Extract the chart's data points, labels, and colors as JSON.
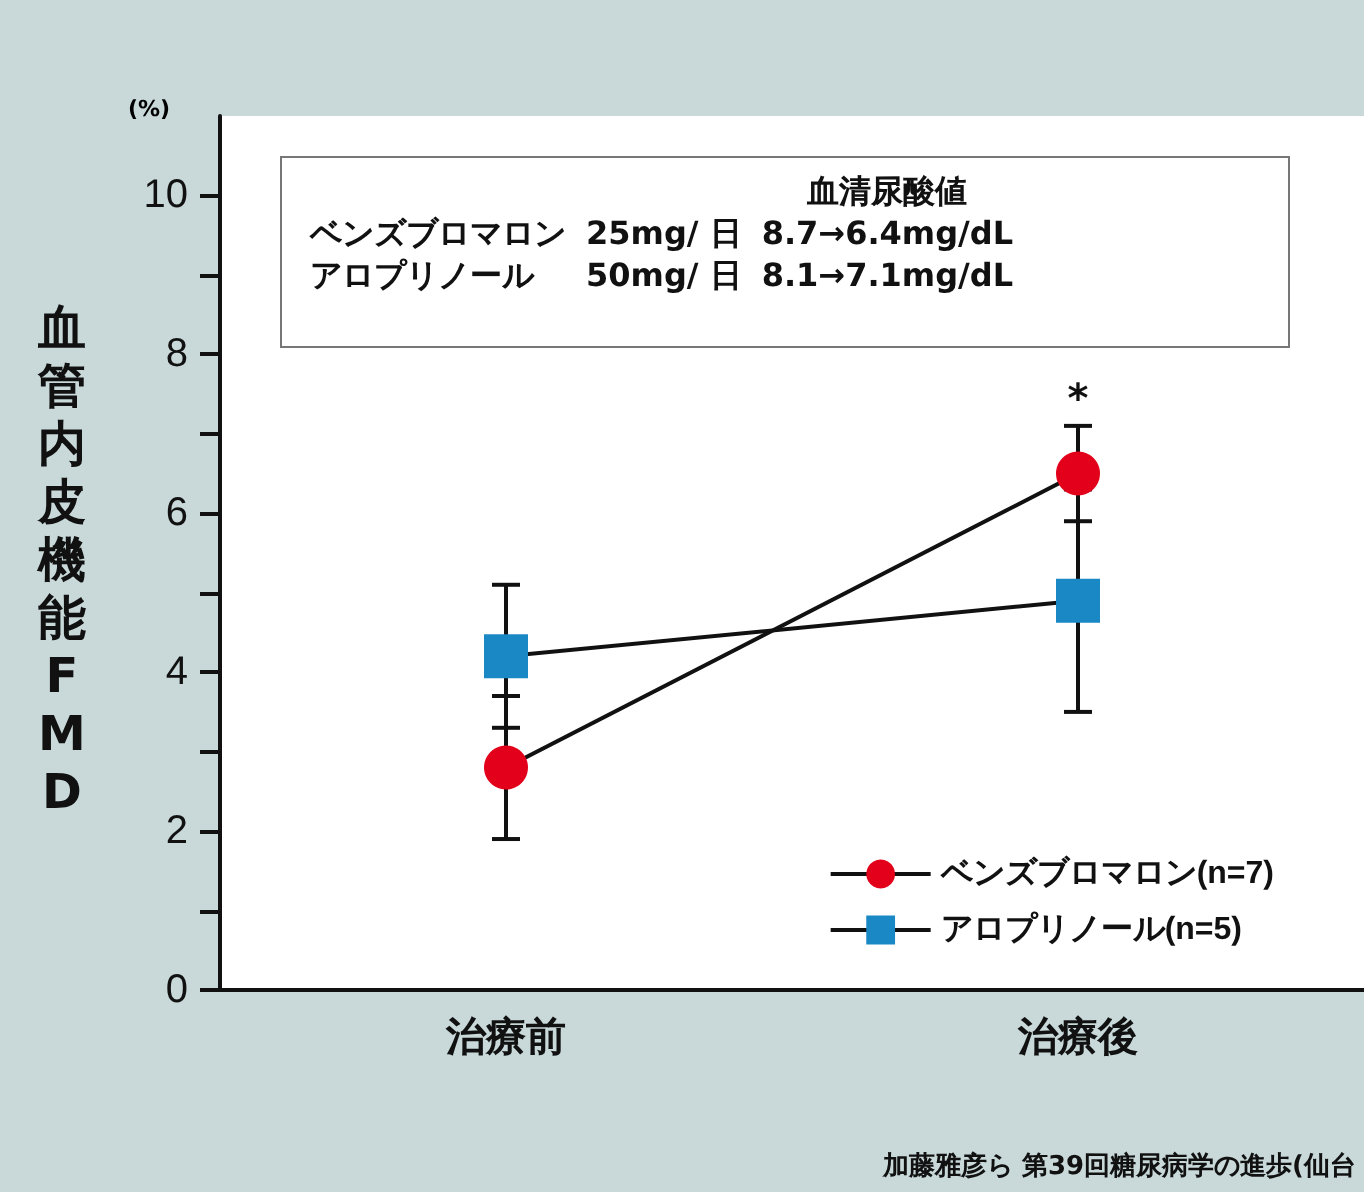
{
  "chart_data": {
    "type": "line",
    "ylabel": "血管内皮機能FMD",
    "categories": [
      "治療前",
      "治療後"
    ],
    "series": [
      {
        "name": "ベンズブロマロン(n=7)",
        "color": "#e2001a",
        "marker": "circle",
        "values": [
          2.8,
          6.5
        ],
        "errors": [
          0.9,
          0.6
        ]
      },
      {
        "name": "アロプリノール(n=5)",
        "color": "#1a88c4",
        "marker": "square",
        "values": [
          4.2,
          4.9
        ],
        "errors": [
          0.9,
          1.4
        ]
      }
    ],
    "ylim": [
      0,
      11
    ],
    "yticks": [
      0,
      {
        "value": 1,
        "label": null
      },
      2,
      {
        "value": 3,
        "label": null
      },
      4,
      {
        "value": 5,
        "label": null
      },
      6,
      {
        "value": 7,
        "label": null
      },
      8,
      {
        "value": 9,
        "label": null
      },
      10
    ],
    "grid": false,
    "legend": "bottom right",
    "annotations": [
      "(%)",
      "血清尿酸値",
      "ベンズブロマロン",
      "25mg/ 日",
      "8.7→6.4mg/dL",
      "アロプリノール",
      "50mg/ 日",
      "8.1→7.1mg/dL",
      "*",
      "加藤雅彦ら 第39回糖尿病学の進歩(仙台"
    ]
  }
}
